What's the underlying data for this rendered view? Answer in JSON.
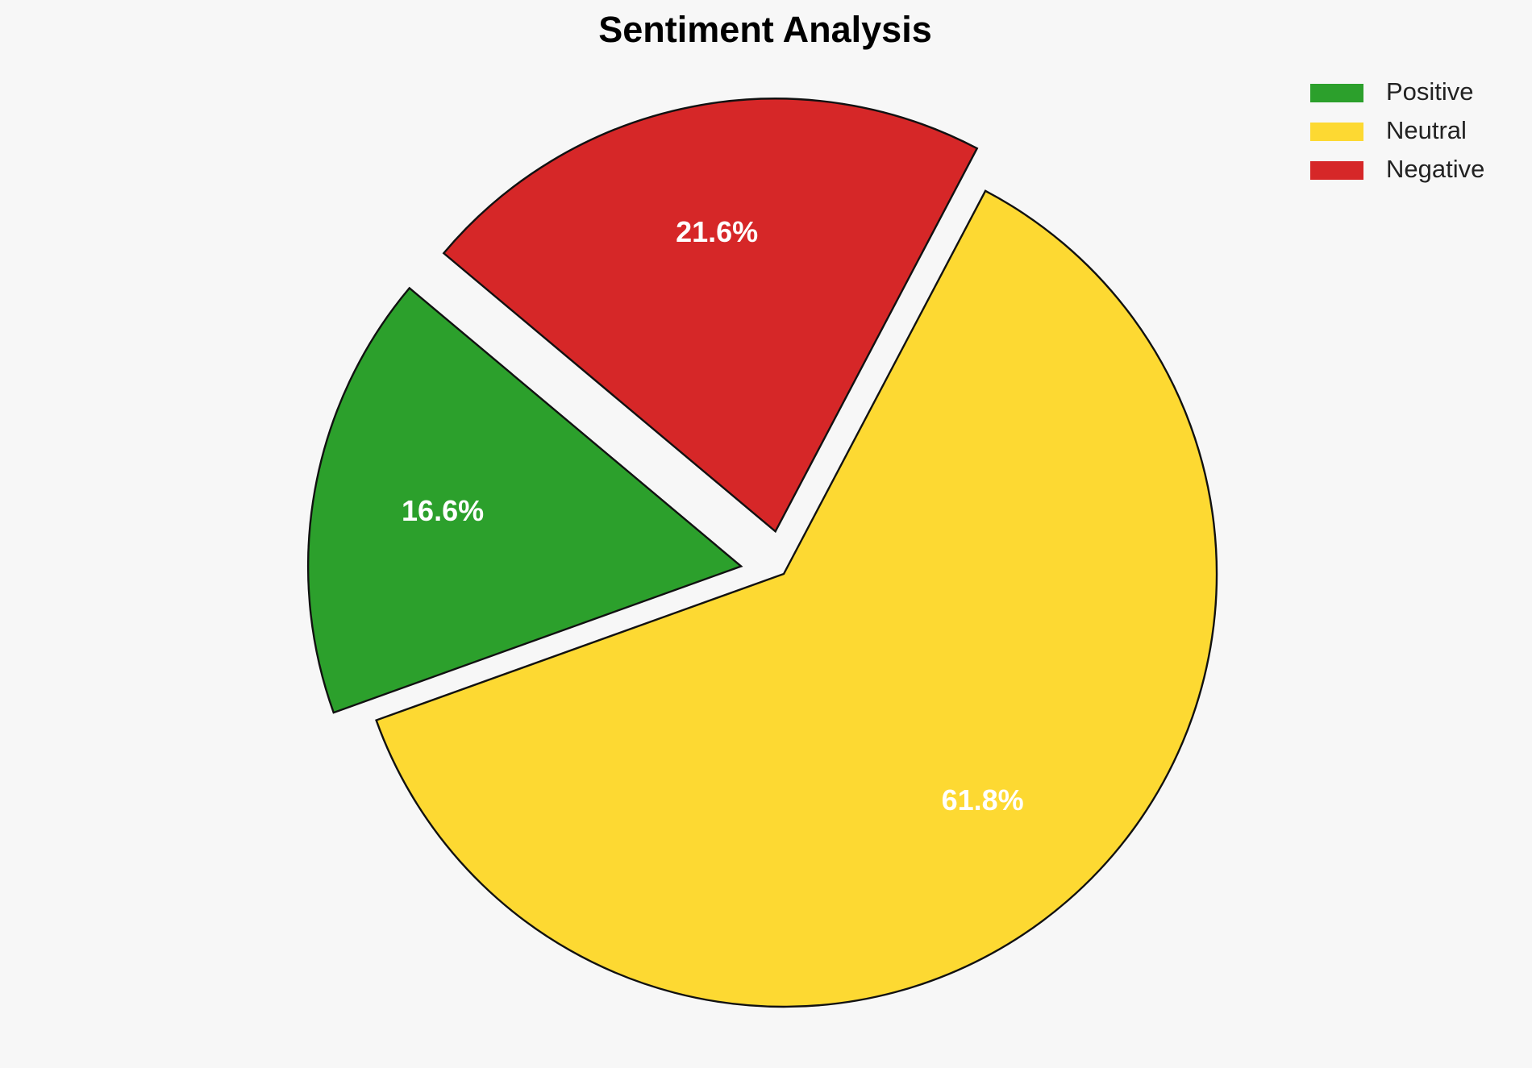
{
  "chart_data": {
    "type": "pie",
    "title": "Sentiment Analysis",
    "categories": [
      "Positive",
      "Neutral",
      "Negative"
    ],
    "values": [
      16.6,
      61.8,
      21.6
    ],
    "value_labels": [
      "16.6%",
      "61.8%",
      "21.6%"
    ],
    "colors": [
      "#2ca02c",
      "#fdd932",
      "#d62728"
    ],
    "explode": [
      0.1,
      0,
      0.1
    ],
    "startangle": 140,
    "legend": "upper right"
  }
}
